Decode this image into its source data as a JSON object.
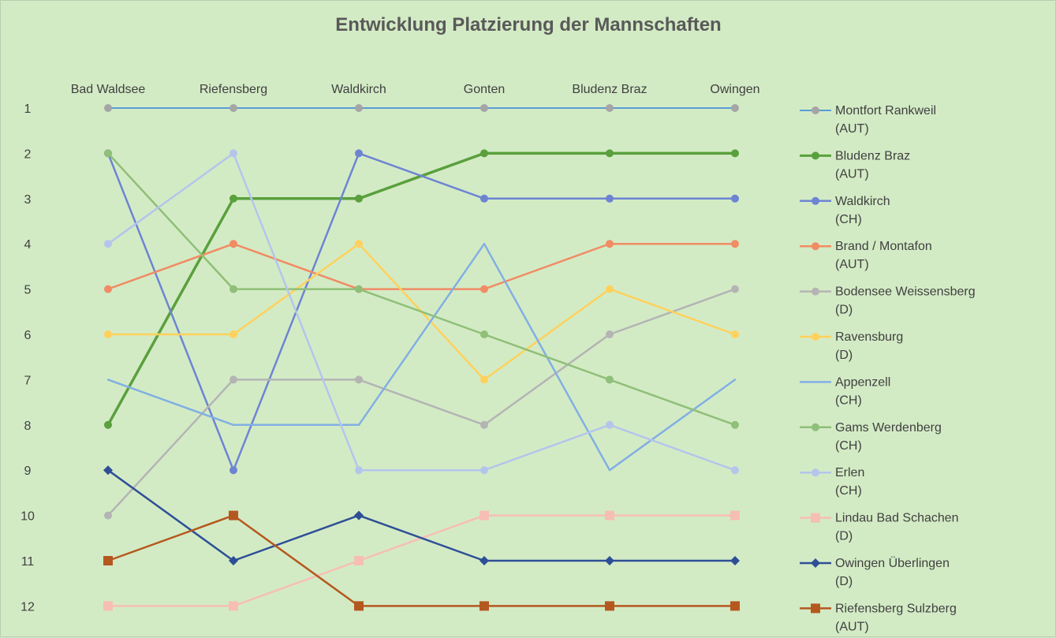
{
  "chart_data": {
    "type": "line",
    "title": "Entwicklung Platzierung der Mannschaften",
    "categories": [
      "Bad Waldsee",
      "Riefensberg",
      "Waldkirch",
      "Gonten",
      "Bludenz Braz",
      "Owingen"
    ],
    "ylabels": [
      "1",
      "2",
      "3",
      "4",
      "5",
      "6",
      "7",
      "8",
      "9",
      "10",
      "11",
      "12"
    ],
    "ylim": [
      1,
      12
    ],
    "y_inverted": true,
    "legend_position": "right",
    "series": [
      {
        "name": "Montfort Rankweil",
        "country": "(AUT)",
        "values": [
          1,
          1,
          1,
          1,
          1,
          1
        ],
        "color": "#5b9bd5",
        "marker_color": "#a5a5a5",
        "marker": "circle",
        "width": 2
      },
      {
        "name": "Bludenz Braz",
        "country": "(AUT)",
        "values": [
          8,
          3,
          3,
          2,
          2,
          2
        ],
        "color": "#5aa03d",
        "marker_color": "#5aa03d",
        "marker": "circle",
        "width": 3.5
      },
      {
        "name": "Waldkirch",
        "country": "(CH)",
        "values": [
          2,
          9,
          2,
          3,
          3,
          3
        ],
        "color": "#6d84d3",
        "marker_color": "#6d84d3",
        "marker": "circle",
        "width": 2.5
      },
      {
        "name": "Brand / Montafon",
        "country": "(AUT)",
        "values": [
          5,
          4,
          5,
          5,
          4,
          4
        ],
        "color": "#f08c64",
        "marker_color": "#f08c64",
        "marker": "circle",
        "width": 2.5
      },
      {
        "name": "Bodensee Weissensberg",
        "country": "(D)",
        "values": [
          10,
          7,
          7,
          8,
          6,
          5
        ],
        "color": "#b4b4b4",
        "marker_color": "#b4b4b4",
        "marker": "circle",
        "width": 2.5
      },
      {
        "name": "Ravensburg",
        "country": "(D)",
        "values": [
          6,
          6,
          4,
          7,
          5,
          6
        ],
        "color": "#ffd15c",
        "marker_color": "#ffd15c",
        "marker": "circle",
        "width": 2.5
      },
      {
        "name": "Appenzell",
        "country": "(CH)",
        "values": [
          7,
          8,
          8,
          4,
          9,
          7
        ],
        "color": "#82afe3",
        "marker_color": "#82afe3",
        "marker": "none",
        "width": 2.5
      },
      {
        "name": "Gams Werdenberg",
        "country": "(CH)",
        "values": [
          2,
          5,
          5,
          6,
          7,
          8
        ],
        "color": "#8fbf78",
        "marker_color": "#8fbf78",
        "marker": "circle",
        "width": 2.5
      },
      {
        "name": "Erlen",
        "country": "(CH)",
        "values": [
          4,
          2,
          9,
          9,
          8,
          9
        ],
        "color": "#b4c5ec",
        "marker_color": "#b4c5ec",
        "marker": "circle",
        "width": 2.5
      },
      {
        "name": "Lindau Bad Schachen",
        "country": "(D)",
        "values": [
          12,
          12,
          11,
          10,
          10,
          10
        ],
        "color": "#f7beb5",
        "marker_color": "#f7beb5",
        "marker": "square",
        "width": 2.5
      },
      {
        "name": "Owingen Überlingen",
        "country": "(D)",
        "values": [
          9,
          11,
          10,
          11,
          11,
          11
        ],
        "color": "#2e4f96",
        "marker_color": "#2e4f96",
        "marker": "diamond",
        "width": 2.5
      },
      {
        "name": "Riefensberg Sulzberg",
        "country": "(AUT)",
        "values": [
          11,
          10,
          12,
          12,
          12,
          12
        ],
        "color": "#b5581f",
        "marker_color": "#b5581f",
        "marker": "square",
        "width": 2.5
      }
    ]
  }
}
